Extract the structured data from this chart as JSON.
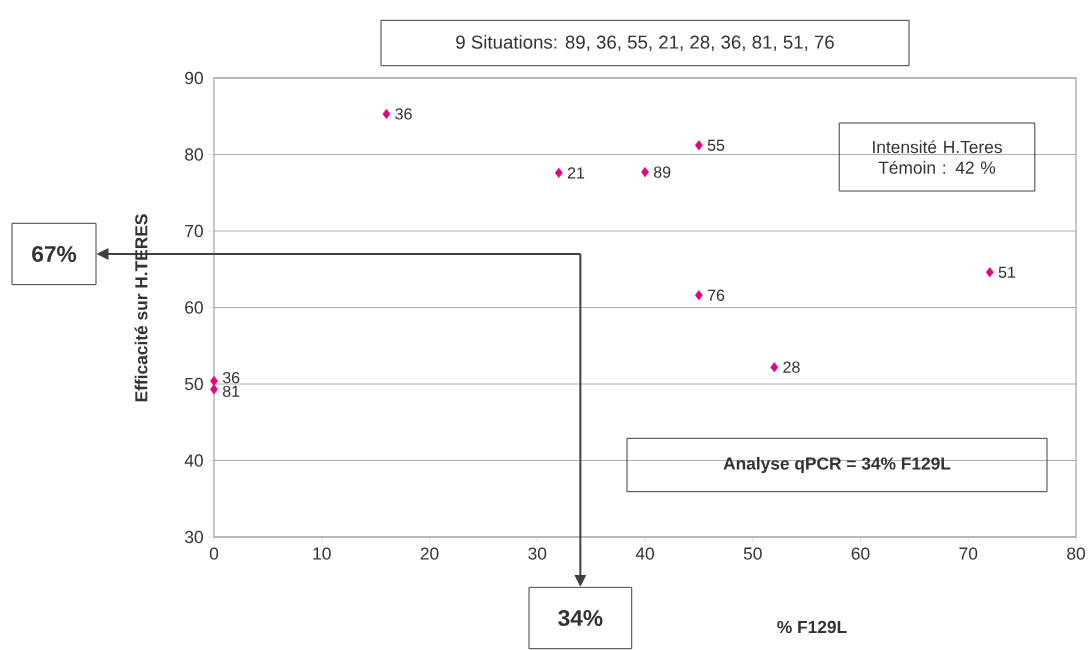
{
  "chart_data": {
    "type": "scatter",
    "title": "9 Situations: 89, 36, 55, 21, 28, 36, 81, 51, 76",
    "xlabel": "% F129L",
    "ylabel": "Efficacité  sur H.TERES",
    "x": [
      40,
      16,
      45,
      32,
      52,
      0,
      0,
      72,
      45
    ],
    "values": [
      77.7,
      85.3,
      81.2,
      77.6,
      52.2,
      50.4,
      49.3,
      64.6,
      61.6
    ],
    "color": "#e6007e",
    "marker": "diamond",
    "xlim": [
      0,
      80
    ],
    "ylim": [
      30,
      90
    ],
    "xticks": [
      0,
      10,
      20,
      30,
      40,
      50,
      60,
      70,
      80
    ],
    "yticks": [
      30,
      40,
      50,
      60,
      70,
      80,
      90
    ],
    "grid": "y",
    "ref_lines": [
      {
        "axis": "y",
        "value": 67,
        "label": "67%"
      },
      {
        "axis": "x",
        "value": 34,
        "label": "34%"
      }
    ],
    "annotations": [
      {
        "text": "89",
        "x": 40,
        "y": 77.7
      },
      {
        "text": "36",
        "x": 16,
        "y": 85.3
      },
      {
        "text": "55",
        "x": 45,
        "y": 81.2
      },
      {
        "text": "21",
        "x": 32,
        "y": 77.6
      },
      {
        "text": "28",
        "x": 52,
        "y": 52.2
      },
      {
        "text": "36",
        "x": 0,
        "y": 50.4
      },
      {
        "text": "81",
        "x": 0,
        "y": 49.3
      },
      {
        "text": "51",
        "x": 72,
        "y": 64.6
      },
      {
        "text": "76",
        "x": 45,
        "y": 61.6
      },
      "Intensité H.Teres Témoin : 42 %",
      "Analyse qPCR = 34% F129L"
    ]
  }
}
